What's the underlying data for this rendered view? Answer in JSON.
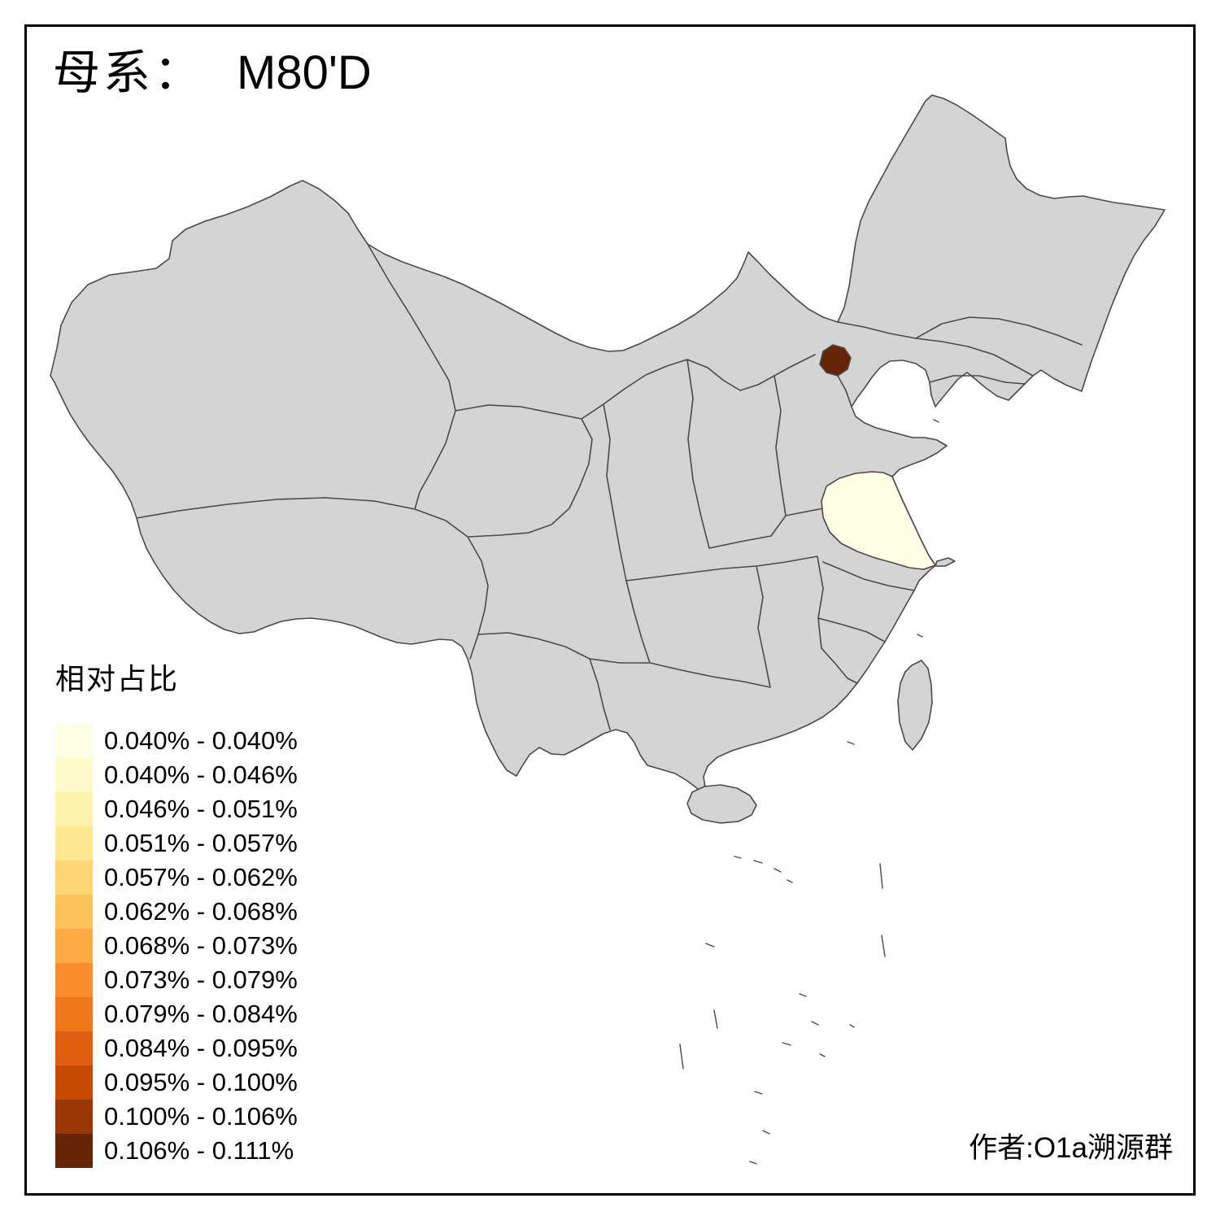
{
  "title": {
    "prefix": "母系：",
    "haplogroup": "M80'D"
  },
  "legend": {
    "title": "相对占比",
    "bins": [
      {
        "label": "0.040% - 0.040%",
        "color": "#FFFFE5"
      },
      {
        "label": "0.040% - 0.046%",
        "color": "#FFFAC9"
      },
      {
        "label": "0.046% - 0.051%",
        "color": "#FEF3AC"
      },
      {
        "label": "0.051% - 0.057%",
        "color": "#FEE791"
      },
      {
        "label": "0.057% - 0.062%",
        "color": "#FED676"
      },
      {
        "label": "0.062% - 0.068%",
        "color": "#FEC25B"
      },
      {
        "label": "0.068% - 0.073%",
        "color": "#FEA944"
      },
      {
        "label": "0.073% - 0.079%",
        "color": "#FB8D2D"
      },
      {
        "label": "0.079% - 0.084%",
        "color": "#F1771D"
      },
      {
        "label": "0.084% - 0.095%",
        "color": "#E05E0F"
      },
      {
        "label": "0.095% - 0.100%",
        "color": "#C74902"
      },
      {
        "label": "0.100% - 0.106%",
        "color": "#9A3504"
      },
      {
        "label": "0.106% - 0.111%",
        "color": "#662506"
      }
    ]
  },
  "attribution": "作者:O1a溯源群",
  "map": {
    "base_fill": "#D4D4D4",
    "border_color": "#4A4A4A",
    "beijing_fill": "#662506",
    "jiangsu_fill": "#FFFFE5"
  },
  "chart_data": {
    "type": "choropleth-map",
    "title": "母系： M80'D",
    "legend_title": "相对占比",
    "legend_position": "bottom-left",
    "bins": [
      "0.040% - 0.040%",
      "0.040% - 0.046%",
      "0.046% - 0.051%",
      "0.051% - 0.057%",
      "0.057% - 0.062%",
      "0.062% - 0.068%",
      "0.068% - 0.073%",
      "0.073% - 0.079%",
      "0.079% - 0.084%",
      "0.084% - 0.095%",
      "0.095% - 0.100%",
      "0.100% - 0.106%",
      "0.106% - 0.111%"
    ],
    "bin_colors": [
      "#FFFFE5",
      "#FFFAC9",
      "#FEF3AC",
      "#FEE791",
      "#FED676",
      "#FEC25B",
      "#FEA944",
      "#FB8D2D",
      "#F1771D",
      "#E05E0F",
      "#C74902",
      "#9A3504",
      "#662506"
    ],
    "values": [
      {
        "region": "Beijing",
        "bin": "0.106% - 0.111%",
        "color": "#662506"
      },
      {
        "region": "Jiangsu",
        "bin": "0.040% - 0.040%",
        "color": "#FFFFE5"
      },
      {
        "region": "all other provinces",
        "bin": "no data",
        "color": "#D4D4D4"
      }
    ]
  }
}
